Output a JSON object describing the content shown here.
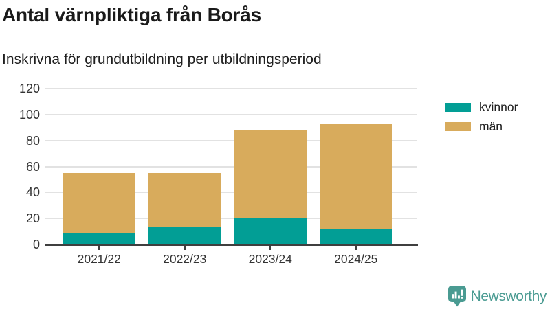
{
  "chart_data": {
    "type": "bar",
    "stacked": true,
    "title": "Antal värnpliktiga från Borås",
    "subtitle": "Inskrivna för grundutbildning per utbildningsperiod",
    "categories": [
      "2021/22",
      "2022/23",
      "2023/24",
      "2024/25"
    ],
    "series": [
      {
        "name": "kvinnor",
        "color": "#029e95",
        "values": [
          9,
          14,
          20,
          12
        ]
      },
      {
        "name": "män",
        "color": "#d8ab5c",
        "values": [
          46,
          41,
          68,
          81
        ]
      }
    ],
    "totals": [
      55,
      55,
      88,
      93
    ],
    "xlabel": "",
    "ylabel": "",
    "ylim": [
      0,
      120
    ],
    "yticks": [
      0,
      20,
      40,
      60,
      80,
      100,
      120
    ],
    "grid": "horizontal",
    "legend_position": "right"
  },
  "branding": {
    "wordmark": "Newsworthy",
    "logo_color": "#4a9b92"
  },
  "palette": {
    "axis_text": "#333333",
    "gridline": "#e2e2e2",
    "axis_line": "#3f3f3f"
  }
}
